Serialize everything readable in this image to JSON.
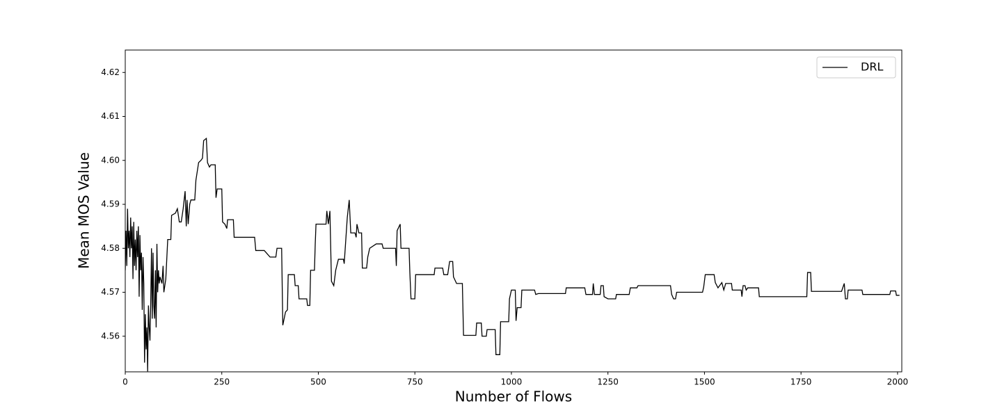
{
  "chart_data": {
    "type": "line",
    "xlabel": "Number of Flows",
    "ylabel": "Mean MOS Value",
    "x": [
      0,
      2,
      4,
      6,
      8,
      10,
      12,
      14,
      16,
      18,
      20,
      22,
      24,
      26,
      28,
      30,
      32,
      34,
      36,
      38,
      40,
      42,
      44,
      46,
      48,
      50,
      52,
      54,
      56,
      58,
      60,
      62,
      64,
      66,
      68,
      70,
      72,
      74,
      76,
      78,
      80,
      82,
      84,
      86,
      88,
      90,
      95,
      98,
      100,
      105,
      110,
      118,
      120,
      130,
      135,
      140,
      145,
      150,
      155,
      158,
      160,
      163,
      167,
      170,
      180,
      183,
      190,
      196,
      200,
      203,
      210,
      213,
      218,
      222,
      233,
      235,
      238,
      250,
      252,
      258,
      263,
      265,
      280,
      282,
      335,
      338,
      360,
      365,
      375,
      390,
      393,
      405,
      408,
      415,
      420,
      422,
      438,
      440,
      448,
      450,
      470,
      472,
      478,
      480,
      490,
      492,
      494,
      520,
      522,
      526,
      530,
      534,
      540,
      545,
      552,
      565,
      567,
      575,
      580,
      584,
      595,
      598,
      600,
      605,
      612,
      614,
      625,
      628,
      633,
      650,
      665,
      668,
      700,
      702,
      704,
      712,
      714,
      735,
      737,
      740,
      750,
      752,
      800,
      802,
      822,
      825,
      835,
      840,
      848,
      850,
      858,
      873,
      876,
      908,
      910,
      922,
      924,
      935,
      937,
      958,
      960,
      970,
      972,
      993,
      995,
      1000,
      1010,
      1012,
      1015,
      1025,
      1027,
      1060,
      1063,
      1070,
      1140,
      1142,
      1190,
      1193,
      1210,
      1212,
      1215,
      1230,
      1232,
      1238,
      1240,
      1250,
      1270,
      1272,
      1305,
      1308,
      1325,
      1328,
      1412,
      1415,
      1420,
      1425,
      1428,
      1495,
      1498,
      1502,
      1525,
      1528,
      1535,
      1545,
      1550,
      1555,
      1570,
      1572,
      1595,
      1597,
      1600,
      1605,
      1608,
      1612,
      1640,
      1642,
      1765,
      1767,
      1775,
      1777,
      1855,
      1858,
      1862,
      1865,
      1870,
      1872,
      1908,
      1910,
      1980,
      1982,
      1995,
      1997,
      2005
    ],
    "series": [
      {
        "name": "DRL",
        "color": "#000000",
        "values": [
          4.575,
          4.584,
          4.576,
          4.589,
          4.58,
          4.584,
          4.578,
          4.587,
          4.58,
          4.585,
          4.573,
          4.586,
          4.576,
          4.582,
          4.575,
          4.584,
          4.578,
          4.585,
          4.569,
          4.583,
          4.575,
          4.579,
          4.566,
          4.578,
          4.572,
          4.554,
          4.565,
          4.557,
          4.562,
          4.552,
          4.567,
          4.562,
          4.559,
          4.568,
          4.58,
          4.564,
          4.579,
          4.567,
          4.564,
          4.575,
          4.562,
          4.581,
          4.57,
          4.575,
          4.572,
          4.5735,
          4.572,
          4.576,
          4.57,
          4.573,
          4.582,
          4.582,
          4.5875,
          4.588,
          4.589,
          4.586,
          4.586,
          4.589,
          4.593,
          4.585,
          4.591,
          4.5855,
          4.59,
          4.591,
          4.591,
          4.5955,
          4.5995,
          4.6,
          4.6005,
          4.6045,
          4.605,
          4.5995,
          4.5985,
          4.599,
          4.599,
          4.5915,
          4.5935,
          4.5935,
          4.586,
          4.5855,
          4.5845,
          4.5865,
          4.5865,
          4.5825,
          4.5825,
          4.5795,
          4.5795,
          4.579,
          4.578,
          4.578,
          4.58,
          4.58,
          4.5625,
          4.5655,
          4.566,
          4.574,
          4.574,
          4.5715,
          4.5715,
          4.5685,
          4.5685,
          4.567,
          4.567,
          4.575,
          4.575,
          4.581,
          4.5855,
          4.5855,
          4.5885,
          4.5855,
          4.5885,
          4.5725,
          4.5715,
          4.575,
          4.5775,
          4.5775,
          4.5765,
          4.587,
          4.591,
          4.5835,
          4.5835,
          4.5825,
          4.5855,
          4.5835,
          4.5835,
          4.5755,
          4.5755,
          4.578,
          4.58,
          4.581,
          4.581,
          4.58,
          4.58,
          4.576,
          4.584,
          4.5855,
          4.58,
          4.58,
          4.5745,
          4.5685,
          4.5685,
          4.574,
          4.574,
          4.5755,
          4.5755,
          4.574,
          4.574,
          4.577,
          4.577,
          4.5735,
          4.572,
          4.572,
          4.5602,
          4.5602,
          4.563,
          4.563,
          4.56,
          4.56,
          4.5615,
          4.5615,
          4.5558,
          4.5558,
          4.5633,
          4.5633,
          4.5685,
          4.5705,
          4.5705,
          4.5635,
          4.5665,
          4.5665,
          4.5705,
          4.5705,
          4.5695,
          4.5697,
          4.5697,
          4.571,
          4.571,
          4.5695,
          4.5695,
          4.572,
          4.5695,
          4.5695,
          4.5715,
          4.5715,
          4.569,
          4.5685,
          4.5685,
          4.5695,
          4.5695,
          4.571,
          4.571,
          4.5715,
          4.5715,
          4.5695,
          4.5685,
          4.5685,
          4.57,
          4.57,
          4.5712,
          4.574,
          4.574,
          4.5722,
          4.571,
          4.5722,
          4.5705,
          4.572,
          4.572,
          4.5705,
          4.5705,
          4.569,
          4.5715,
          4.5715,
          4.5705,
          4.571,
          4.571,
          4.569,
          4.569,
          4.5745,
          4.5745,
          4.5702,
          4.5702,
          4.571,
          4.572,
          4.5685,
          4.5685,
          4.5705,
          4.5705,
          4.5695,
          4.5695,
          4.5703,
          4.5703,
          4.5693,
          4.5693
        ]
      }
    ],
    "xlim": [
      0,
      2011
    ],
    "ylim": [
      4.5519,
      4.6251
    ],
    "xticks": [
      0,
      250,
      500,
      750,
      1000,
      1250,
      1500,
      1750,
      2000
    ],
    "yticks": [
      4.56,
      4.57,
      4.58,
      4.59,
      {
        "value": 4.6,
        "label": "4.60"
      },
      4.61,
      4.62
    ],
    "legend": "upper right"
  }
}
